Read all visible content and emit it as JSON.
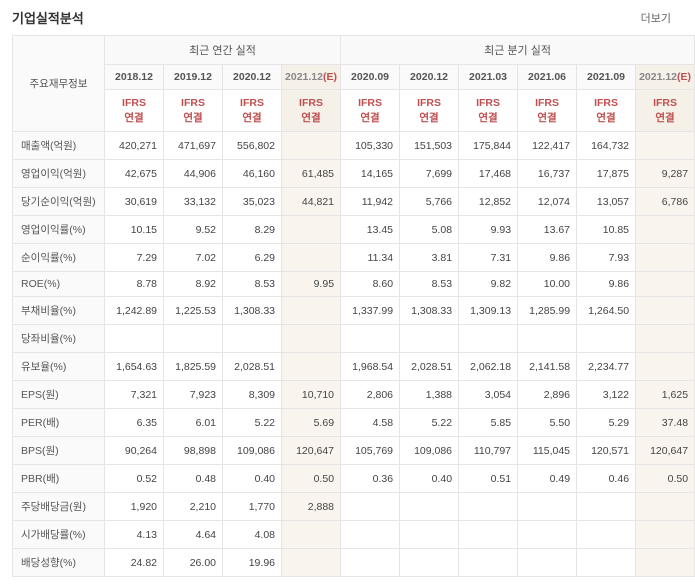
{
  "title": "기업실적분석",
  "more": "더보기",
  "corner_header": "주요재무정보",
  "group_headers": [
    "최근 연간 실적",
    "최근 분기 실적"
  ],
  "periods": [
    {
      "label": "2018.12",
      "est": false
    },
    {
      "label": "2019.12",
      "est": false
    },
    {
      "label": "2020.12",
      "est": false
    },
    {
      "label": "2021.12",
      "est": true,
      "suffix": "(E)"
    },
    {
      "label": "2020.09",
      "est": false
    },
    {
      "label": "2020.12",
      "est": false
    },
    {
      "label": "2021.03",
      "est": false
    },
    {
      "label": "2021.06",
      "est": false
    },
    {
      "label": "2021.09",
      "est": false
    },
    {
      "label": "2021.12",
      "est": true,
      "suffix": "(E)"
    }
  ],
  "ifrs_line1": "IFRS",
  "ifrs_line2": "연결",
  "metrics": [
    {
      "label": "매출액(억원)",
      "values": [
        "420,271",
        "471,697",
        "556,802",
        "",
        "105,330",
        "151,503",
        "175,844",
        "122,417",
        "164,732",
        ""
      ]
    },
    {
      "label": "영업이익(억원)",
      "values": [
        "42,675",
        "44,906",
        "46,160",
        "61,485",
        "14,165",
        "7,699",
        "17,468",
        "16,737",
        "17,875",
        "9,287"
      ]
    },
    {
      "label": "당기순이익(억원)",
      "values": [
        "30,619",
        "33,132",
        "35,023",
        "44,821",
        "11,942",
        "5,766",
        "12,852",
        "12,074",
        "13,057",
        "6,786"
      ]
    },
    {
      "label": "영업이익률(%)",
      "values": [
        "10.15",
        "9.52",
        "8.29",
        "",
        "13.45",
        "5.08",
        "9.93",
        "13.67",
        "10.85",
        ""
      ]
    },
    {
      "label": "순이익률(%)",
      "values": [
        "7.29",
        "7.02",
        "6.29",
        "",
        "11.34",
        "3.81",
        "7.31",
        "9.86",
        "7.93",
        ""
      ]
    },
    {
      "label": "ROE(%)",
      "values": [
        "8.78",
        "8.92",
        "8.53",
        "9.95",
        "8.60",
        "8.53",
        "9.82",
        "10.00",
        "9.86",
        ""
      ]
    },
    {
      "label": "부채비율(%)",
      "values": [
        "1,242.89",
        "1,225.53",
        "1,308.33",
        "",
        "1,337.99",
        "1,308.33",
        "1,309.13",
        "1,285.99",
        "1,264.50",
        ""
      ]
    },
    {
      "label": "당좌비율(%)",
      "values": [
        "",
        "",
        "",
        "",
        "",
        "",
        "",
        "",
        "",
        ""
      ]
    },
    {
      "label": "유보율(%)",
      "values": [
        "1,654.63",
        "1,825.59",
        "2,028.51",
        "",
        "1,968.54",
        "2,028.51",
        "2,062.18",
        "2,141.58",
        "2,234.77",
        ""
      ]
    },
    {
      "label": "EPS(원)",
      "values": [
        "7,321",
        "7,923",
        "8,309",
        "10,710",
        "2,806",
        "1,388",
        "3,054",
        "2,896",
        "3,122",
        "1,625"
      ]
    },
    {
      "label": "PER(배)",
      "values": [
        "6.35",
        "6.01",
        "5.22",
        "5.69",
        "4.58",
        "5.22",
        "5.85",
        "5.50",
        "5.29",
        "37.48"
      ]
    },
    {
      "label": "BPS(원)",
      "values": [
        "90,264",
        "98,898",
        "109,086",
        "120,647",
        "105,769",
        "109,086",
        "110,797",
        "115,045",
        "120,571",
        "120,647"
      ]
    },
    {
      "label": "PBR(배)",
      "values": [
        "0.52",
        "0.48",
        "0.40",
        "0.50",
        "0.36",
        "0.40",
        "0.51",
        "0.49",
        "0.46",
        "0.50"
      ]
    },
    {
      "label": "주당배당금(원)",
      "values": [
        "1,920",
        "2,210",
        "1,770",
        "2,888",
        "",
        "",
        "",
        "",
        "",
        ""
      ]
    },
    {
      "label": "시가배당률(%)",
      "values": [
        "4.13",
        "4.64",
        "4.08",
        "",
        "",
        "",
        "",
        "",
        "",
        ""
      ]
    },
    {
      "label": "배당성향(%)",
      "values": [
        "24.82",
        "26.00",
        "19.96",
        "",
        "",
        "",
        "",
        "",
        "",
        ""
      ]
    }
  ],
  "est_cols": [
    3,
    9
  ]
}
